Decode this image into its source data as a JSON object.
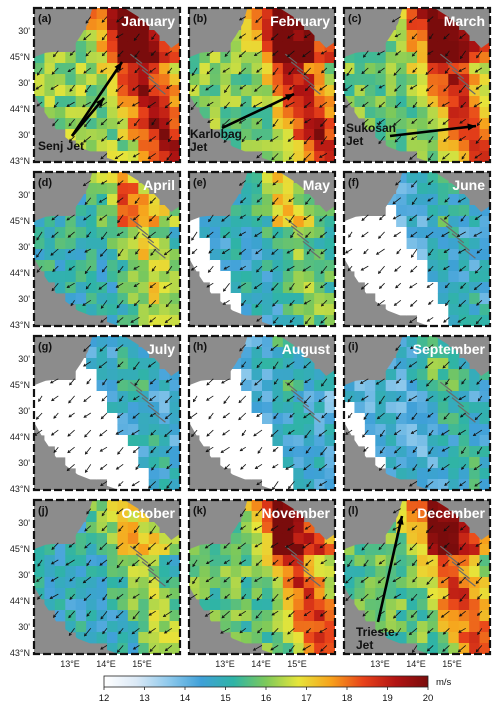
{
  "panels": [
    {
      "letter": "(a)",
      "month": "January",
      "mask": 0.0,
      "intensity": 0.85,
      "jet": "Senj Jet"
    },
    {
      "letter": "(b)",
      "month": "February",
      "mask": 0.0,
      "intensity": 0.8,
      "jet": "Karlobag Jet"
    },
    {
      "letter": "(c)",
      "month": "March",
      "mask": 0.0,
      "intensity": 0.78,
      "jet": "Sukošan Jet"
    },
    {
      "letter": "(d)",
      "month": "April",
      "mask": 0.0,
      "intensity": 0.45,
      "jet": ""
    },
    {
      "letter": "(e)",
      "month": "May",
      "mask": 0.4,
      "intensity": 0.35,
      "jet": ""
    },
    {
      "letter": "(f)",
      "month": "June",
      "mask": 0.65,
      "intensity": 0.15,
      "jet": ""
    },
    {
      "letter": "(g)",
      "month": "July",
      "mask": 0.7,
      "intensity": 0.15,
      "jet": ""
    },
    {
      "letter": "(h)",
      "month": "August",
      "mask": 0.65,
      "intensity": 0.15,
      "jet": ""
    },
    {
      "letter": "(i)",
      "month": "September",
      "mask": 0.35,
      "intensity": 0.2,
      "jet": ""
    },
    {
      "letter": "(j)",
      "month": "October",
      "mask": 0.0,
      "intensity": 0.4,
      "jet": ""
    },
    {
      "letter": "(k)",
      "month": "November",
      "mask": 0.0,
      "intensity": 0.7,
      "jet": ""
    },
    {
      "letter": "(l)",
      "month": "December",
      "mask": 0.0,
      "intensity": 0.7,
      "jet": "Trieste Jet"
    }
  ],
  "lat_labels": [
    "30'",
    "45°N",
    "30'",
    "44°N",
    "30'",
    "43°N"
  ],
  "lon_labels": [
    "13°E",
    "14°E",
    "15°E"
  ],
  "colorbar": {
    "ticks": [
      "12",
      "13",
      "14",
      "15",
      "16",
      "17",
      "18",
      "19",
      "20"
    ],
    "unit": "m/s",
    "min": 12,
    "max": 20,
    "colors": [
      "#ffffff",
      "#dbe9f6",
      "#8ec9ec",
      "#3fa0d8",
      "#2fb4a6",
      "#7dc95a",
      "#e6e53a",
      "#f7a21c",
      "#e8421a",
      "#b21413",
      "#7a0c0c"
    ]
  }
}
